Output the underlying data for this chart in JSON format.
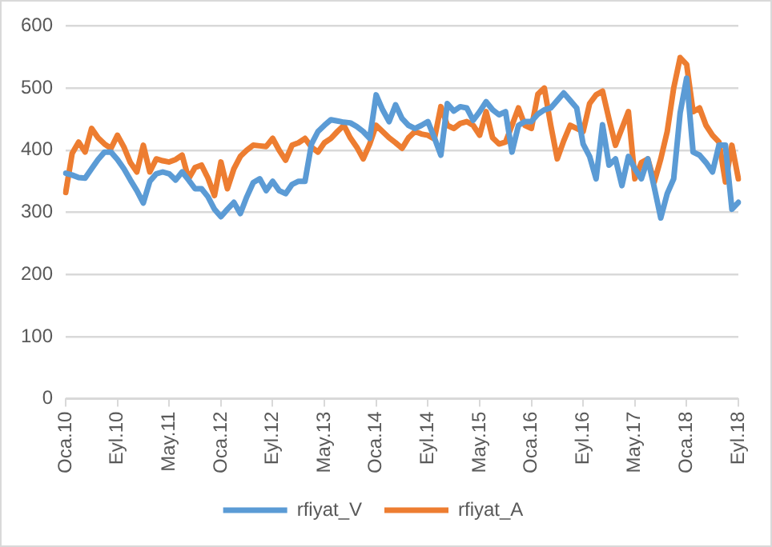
{
  "chart_data": {
    "type": "line",
    "categories": [
      "Oca.10",
      null,
      null,
      null,
      null,
      null,
      null,
      null,
      "Eyl.10",
      null,
      null,
      null,
      null,
      null,
      null,
      null,
      "May.11",
      null,
      null,
      null,
      null,
      null,
      null,
      null,
      "Oca.12",
      null,
      null,
      null,
      null,
      null,
      null,
      null,
      "Eyl.12",
      null,
      null,
      null,
      null,
      null,
      null,
      null,
      "May.13",
      null,
      null,
      null,
      null,
      null,
      null,
      null,
      "Oca.14",
      null,
      null,
      null,
      null,
      null,
      null,
      null,
      "Eyl.14",
      null,
      null,
      null,
      null,
      null,
      null,
      null,
      "May.15",
      null,
      null,
      null,
      null,
      null,
      null,
      null,
      "Oca.16",
      null,
      null,
      null,
      null,
      null,
      null,
      null,
      "Eyl.16",
      null,
      null,
      null,
      null,
      null,
      null,
      null,
      "May.17",
      null,
      null,
      null,
      null,
      null,
      null,
      null,
      "Oca.18",
      null,
      null,
      null,
      null,
      null,
      null,
      null,
      "Eyl.18"
    ],
    "series": [
      {
        "name": "rfiyat_V",
        "color": "#5b9bd5",
        "values": [
          363,
          360,
          356,
          355,
          370,
          385,
          397,
          397,
          385,
          370,
          352,
          335,
          315,
          350,
          362,
          365,
          362,
          352,
          365,
          352,
          338,
          338,
          325,
          305,
          293,
          305,
          316,
          298,
          325,
          348,
          354,
          335,
          350,
          335,
          330,
          345,
          350,
          350,
          410,
          430,
          440,
          449,
          447,
          445,
          444,
          438,
          430,
          419,
          489,
          465,
          446,
          473,
          451,
          440,
          435,
          440,
          446,
          420,
          392,
          475,
          463,
          470,
          468,
          448,
          462,
          478,
          465,
          457,
          462,
          397,
          440,
          446,
          446,
          458,
          465,
          468,
          480,
          492,
          480,
          468,
          410,
          390,
          354,
          441,
          376,
          386,
          343,
          390,
          370,
          354,
          386,
          340,
          291,
          330,
          354,
          460,
          516,
          397,
          392,
          380,
          365,
          408,
          408,
          305,
          316
        ]
      },
      {
        "name": "rfiyat_A",
        "color": "#ed7d31",
        "values": [
          332,
          395,
          413,
          397,
          435,
          420,
          410,
          403,
          424,
          405,
          380,
          365,
          408,
          365,
          386,
          383,
          381,
          385,
          392,
          354,
          372,
          376,
          355,
          327,
          381,
          338,
          370,
          390,
          400,
          408,
          407,
          406,
          419,
          400,
          384,
          408,
          412,
          419,
          405,
          397,
          412,
          419,
          430,
          440,
          420,
          405,
          386,
          410,
          440,
          430,
          420,
          412,
          403,
          420,
          430,
          426,
          424,
          418,
          470,
          440,
          435,
          443,
          446,
          440,
          424,
          462,
          420,
          410,
          413,
          440,
          468,
          440,
          435,
          490,
          500,
          440,
          386,
          415,
          440,
          435,
          430,
          475,
          489,
          495,
          450,
          408,
          435,
          462,
          354,
          380,
          386,
          349,
          386,
          430,
          500,
          549,
          538,
          462,
          468,
          440,
          424,
          413,
          349,
          408,
          354
        ]
      }
    ],
    "ylim": [
      0,
      600
    ],
    "yticks": [
      0,
      100,
      200,
      300,
      400,
      500,
      600
    ],
    "grid": "y",
    "legend": "bottom",
    "marker": "none",
    "line_style": "solid"
  }
}
